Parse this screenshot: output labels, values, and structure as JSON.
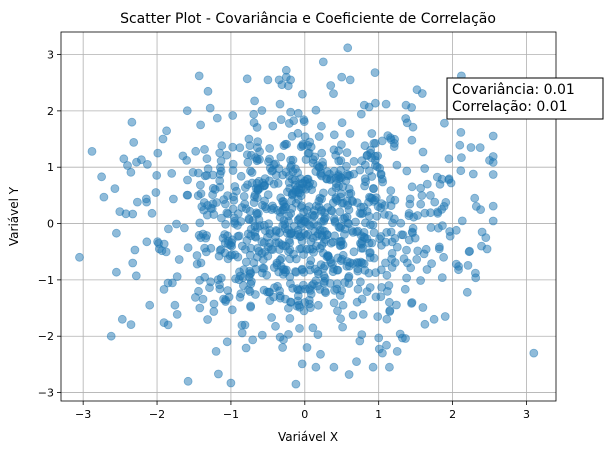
{
  "chart_data": {
    "type": "scatter",
    "title": "Scatter Plot - Covariância e Coeficiente de Correlação",
    "xlabel": "Variável X",
    "ylabel": "Variável Y",
    "xlim": [
      -3.3,
      3.4
    ],
    "ylim": [
      -3.15,
      3.4
    ],
    "xticks": [
      -3,
      -2,
      -1,
      0,
      1,
      2,
      3
    ],
    "yticks": [
      -3,
      -2,
      -1,
      0,
      1,
      2,
      3
    ],
    "grid": true,
    "marker_color": "#1f77b4",
    "marker_alpha": 0.5,
    "n_points": 1000,
    "annotation": {
      "lines": [
        "Covariância: 0.01",
        "Correlação: 0.01"
      ],
      "placement": "top-right"
    },
    "outlier_points": [
      {
        "x": -3.05,
        "y": -0.6
      },
      {
        "x": -2.88,
        "y": 1.28
      },
      {
        "x": -2.75,
        "y": 0.83
      },
      {
        "x": -2.72,
        "y": 0.47
      },
      {
        "x": -2.57,
        "y": 0.62
      },
      {
        "x": -2.62,
        "y": -2.0
      },
      {
        "x": -2.47,
        "y": -1.7
      },
      {
        "x": -2.45,
        "y": 1.15
      },
      {
        "x": -2.4,
        "y": 1.03
      },
      {
        "x": -2.33,
        "y": 0.17
      },
      {
        "x": -2.33,
        "y": -0.7
      },
      {
        "x": -2.3,
        "y": -0.47
      },
      {
        "x": -2.13,
        "y": 1.05
      },
      {
        "x": -2.1,
        "y": -1.45
      },
      {
        "x": -1.92,
        "y": 1.5
      },
      {
        "x": -1.85,
        "y": -1.8
      },
      {
        "x": -1.65,
        "y": 1.2
      },
      {
        "x": -1.58,
        "y": -2.8
      },
      {
        "x": -1.43,
        "y": 2.62
      },
      {
        "x": -1.28,
        "y": 2.05
      },
      {
        "x": -1.2,
        "y": -2.27
      },
      {
        "x": -1.17,
        "y": -2.67
      },
      {
        "x": -1.05,
        "y": -2.1
      },
      {
        "x": -1.0,
        "y": -2.83
      },
      {
        "x": -0.78,
        "y": 2.57
      },
      {
        "x": -0.5,
        "y": 2.55
      },
      {
        "x": -0.3,
        "y": -2.2
      },
      {
        "x": -0.25,
        "y": 2.72
      },
      {
        "x": -0.25,
        "y": 2.6
      },
      {
        "x": -0.12,
        "y": -2.85
      },
      {
        "x": 0.03,
        "y": -2.2
      },
      {
        "x": 0.15,
        "y": -2.55
      },
      {
        "x": 0.25,
        "y": 2.87
      },
      {
        "x": 0.35,
        "y": 2.45
      },
      {
        "x": 0.5,
        "y": 2.6
      },
      {
        "x": 0.58,
        "y": 3.12
      },
      {
        "x": 0.6,
        "y": -2.68
      },
      {
        "x": 0.7,
        "y": -2.45
      },
      {
        "x": 0.95,
        "y": 2.68
      },
      {
        "x": 1.0,
        "y": -2.03
      },
      {
        "x": 1.05,
        "y": -2.3
      },
      {
        "x": 1.25,
        "y": -2.27
      },
      {
        "x": 1.1,
        "y": 2.12
      },
      {
        "x": 1.37,
        "y": 2.1
      },
      {
        "x": 1.45,
        "y": 1.48
      },
      {
        "x": 1.6,
        "y": 1.27
      },
      {
        "x": 1.7,
        "y": 0.5
      },
      {
        "x": 1.75,
        "y": -1.7
      },
      {
        "x": 1.8,
        "y": 0.18
      },
      {
        "x": 1.82,
        "y": -0.45
      },
      {
        "x": 1.9,
        "y": -1.65
      },
      {
        "x": 1.95,
        "y": 1.15
      },
      {
        "x": 1.98,
        "y": 0.72
      },
      {
        "x": 2.05,
        "y": -0.12
      },
      {
        "x": 2.05,
        "y": -0.72
      },
      {
        "x": 2.08,
        "y": -0.82
      },
      {
        "x": 2.12,
        "y": 1.17
      },
      {
        "x": 2.2,
        "y": -1.22
      },
      {
        "x": 2.25,
        "y": 1.35
      },
      {
        "x": 2.28,
        "y": 0.88
      },
      {
        "x": 2.3,
        "y": 0.45
      },
      {
        "x": 2.4,
        "y": -0.15
      },
      {
        "x": 2.45,
        "y": -0.25
      },
      {
        "x": 2.5,
        "y": 1.12
      },
      {
        "x": 2.55,
        "y": 0.87
      },
      {
        "x": 2.12,
        "y": 2.62
      },
      {
        "x": 3.1,
        "y": -2.3
      }
    ]
  }
}
